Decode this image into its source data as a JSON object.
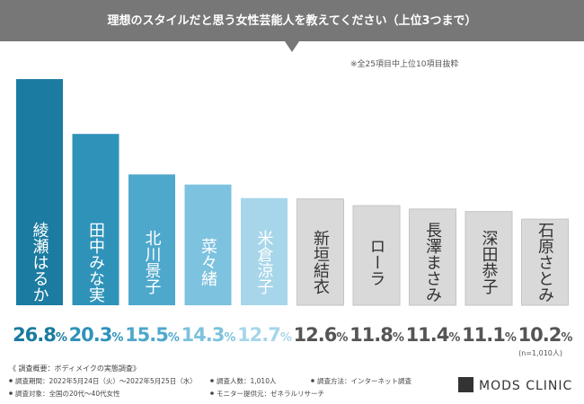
{
  "chart_data": {
    "type": "bar",
    "title": "理想のスタイルだと思う女性芸能人を教えてください（上位3つまで）",
    "note": "※全25項目中上位10項目抜粋",
    "sample_size": "(n=1,010人)",
    "categories": [
      "綾瀬はるか",
      "田中みな実",
      "北川景子",
      "菜々緒",
      "米倉涼子",
      "新垣結衣",
      "ローラ",
      "長澤まさみ",
      "深田恭子",
      "石原さとみ"
    ],
    "values": [
      26.8,
      20.3,
      15.5,
      14.3,
      12.7,
      12.6,
      11.8,
      11.4,
      11.1,
      10.2
    ],
    "value_labels": [
      "26.8%",
      "20.3%",
      "15.5%",
      "14.3%",
      "12.7%",
      "12.6%",
      "11.8%",
      "11.4%",
      "11.1%",
      "10.2%"
    ],
    "colors": [
      "#1b7ba0",
      "#2f93b9",
      "#4ea8cc",
      "#7dc2de",
      "#a7d6ea",
      "#d9d9d9",
      "#d9d9d9",
      "#d9d9d9",
      "#d9d9d9",
      "#d9d9d9"
    ],
    "label_colors": [
      "#1b7ba0",
      "#2f93b9",
      "#4ea8cc",
      "#7dc2de",
      "#a7d6ea",
      "#555555",
      "#555555",
      "#555555",
      "#555555",
      "#555555"
    ],
    "ylim": [
      0,
      30
    ]
  },
  "footer": {
    "heading": "《 調査概要：ボディメイクの実態調査》",
    "items": [
      "調査期間：2022年5月24日（火）～2022年5月25日（水）",
      "調査人数：1,010人",
      "調査方法：インターネット調査",
      "調査対象：全国の20代～40代女性",
      "モニター提供元：ゼネラルリサーチ"
    ]
  },
  "logo": "MODS CLINIC"
}
